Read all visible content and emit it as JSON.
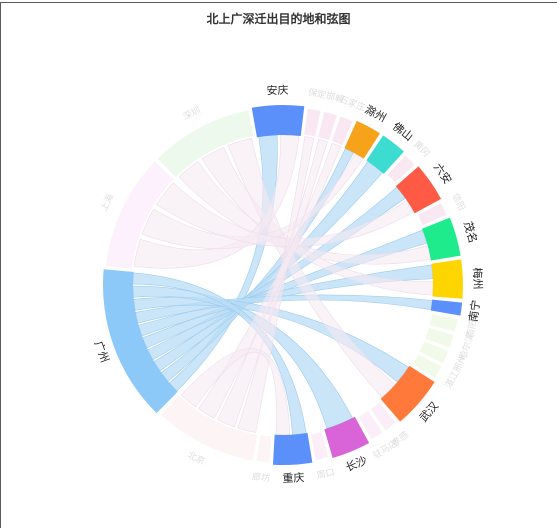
{
  "chart_data": {
    "type": "chord",
    "title": "北上广深迁出目的地和弦图",
    "nodes": [
      {
        "name": "安庆",
        "color": "#5b8ff9",
        "value": 4,
        "highlight": true
      },
      {
        "name": "保定",
        "color": "#f7e1ef",
        "value": 1,
        "highlight": false
      },
      {
        "name": "邯郸",
        "color": "#f7e1ef",
        "value": 1,
        "highlight": false
      },
      {
        "name": "石家庄",
        "color": "#f7e1ef",
        "value": 1,
        "highlight": false
      },
      {
        "name": "滁州",
        "color": "#f7a21b",
        "value": 2,
        "highlight": true
      },
      {
        "name": "佛山",
        "color": "#3ddcd0",
        "value": 2,
        "highlight": true
      },
      {
        "name": "黄冈",
        "color": "#f7e1ef",
        "value": 1,
        "highlight": false
      },
      {
        "name": "六安",
        "color": "#ff5a46",
        "value": 3,
        "highlight": true
      },
      {
        "name": "信阳",
        "color": "#f7e1ef",
        "value": 1,
        "highlight": false
      },
      {
        "name": "茂名",
        "color": "#1eeb8c",
        "value": 3,
        "highlight": true
      },
      {
        "name": "梅州",
        "color": "#ffd500",
        "value": 3,
        "highlight": true
      },
      {
        "name": "南宁",
        "color": "#5b8ff9",
        "value": 1,
        "highlight": true
      },
      {
        "name": "南阳",
        "color": "#eef7e4",
        "value": 1,
        "highlight": false
      },
      {
        "name": "哈尔滨",
        "color": "#eef7e4",
        "value": 1,
        "highlight": false
      },
      {
        "name": "邢州",
        "color": "#eef7e4",
        "value": 1,
        "highlight": false
      },
      {
        "name": "湛江",
        "color": "#eef7e4",
        "value": 1,
        "highlight": false
      },
      {
        "name": "武汉",
        "color": "#ff7a3a",
        "value": 4,
        "highlight": true
      },
      {
        "name": "孝感",
        "color": "#fbeaf6",
        "value": 1,
        "highlight": false
      },
      {
        "name": "驻马店",
        "color": "#fbeaf6",
        "value": 1,
        "highlight": false
      },
      {
        "name": "长沙",
        "color": "#d864d8",
        "value": 3,
        "highlight": true
      },
      {
        "name": "周口",
        "color": "#fbeaf6",
        "value": 1,
        "highlight": false
      },
      {
        "name": "重庆",
        "color": "#5b8ff9",
        "value": 3,
        "highlight": true
      },
      {
        "name": "廊坊",
        "color": "#fdf3f3",
        "value": 1,
        "highlight": false
      },
      {
        "name": "北京",
        "color": "#fdf3f3",
        "value": 8,
        "highlight": false
      },
      {
        "name": "广州",
        "color": "#8cc8f8",
        "value": 12,
        "highlight": true
      },
      {
        "name": "上海",
        "color": "#fbeefb",
        "value": 9,
        "highlight": false
      },
      {
        "name": "深圳",
        "color": "#eaf8ea",
        "value": 8,
        "highlight": false
      }
    ],
    "links": [
      {
        "source": "广州",
        "target": "安庆"
      },
      {
        "source": "广州",
        "target": "滁州"
      },
      {
        "source": "广州",
        "target": "佛山"
      },
      {
        "source": "广州",
        "target": "六安"
      },
      {
        "source": "广州",
        "target": "茂名"
      },
      {
        "source": "广州",
        "target": "梅州"
      },
      {
        "source": "广州",
        "target": "南宁"
      },
      {
        "source": "广州",
        "target": "武汉"
      },
      {
        "source": "广州",
        "target": "长沙"
      },
      {
        "source": "广州",
        "target": "重庆"
      },
      {
        "source": "深圳",
        "target": "茂名"
      },
      {
        "source": "深圳",
        "target": "梅州"
      },
      {
        "source": "深圳",
        "target": "武汉"
      },
      {
        "source": "上海",
        "target": "安庆"
      },
      {
        "source": "上海",
        "target": "滁州"
      },
      {
        "source": "上海",
        "target": "六安"
      },
      {
        "source": "北京",
        "target": "保定"
      },
      {
        "source": "北京",
        "target": "邯郸"
      },
      {
        "source": "北京",
        "target": "石家庄"
      },
      {
        "source": "北京",
        "target": "重庆"
      }
    ],
    "highlight_link_color": "#b9dcf5",
    "faint_link_color": "#f5e9f2"
  }
}
